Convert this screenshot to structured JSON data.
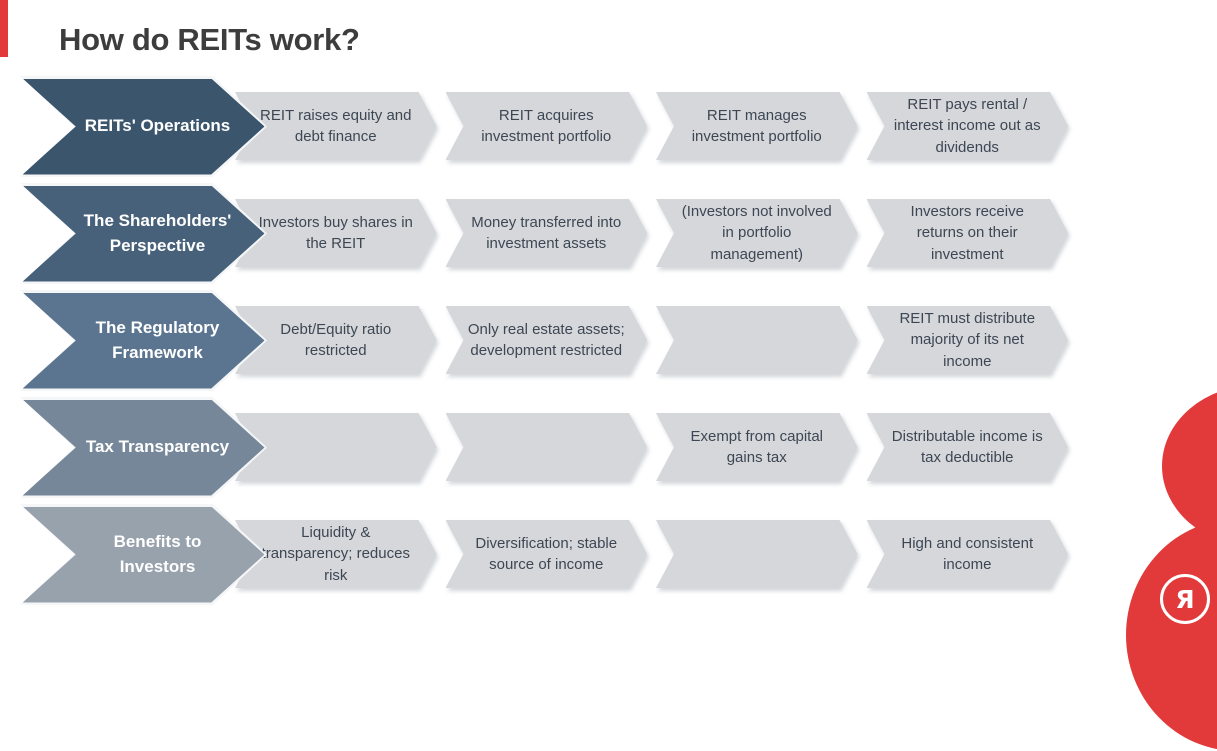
{
  "theme": {
    "accent_red": "#e23a3a",
    "step_bg": "#d6d7da",
    "step_text": "#3d4754",
    "title_color": "#3d3d3d"
  },
  "page": {
    "title": "How do REITs work?"
  },
  "brand": {
    "logo_letter": "Я"
  },
  "flow": {
    "rows": [
      {
        "label": "REITs' Operations",
        "color": "#3a556c",
        "steps": [
          "REIT raises equity and debt finance",
          "REIT acquires investment portfolio",
          "REIT manages investment portfolio",
          "REIT pays rental / interest income out as dividends"
        ]
      },
      {
        "label": "The Shareholders' Perspective",
        "color": "#47617a",
        "steps": [
          "Investors buy shares in the REIT",
          "Money transferred into investment assets",
          "(Investors not involved in portfolio management)",
          "Investors receive returns on their investment"
        ]
      },
      {
        "label": "The Regulatory Framework",
        "color": "#5b7590",
        "steps": [
          "Debt/Equity ratio restricted",
          "Only real estate assets; development restricted",
          "",
          "REIT must distribute majority of its net income"
        ]
      },
      {
        "label": "Tax Transparency",
        "color": "#76879a",
        "steps": [
          "",
          "",
          "Exempt from capital gains tax",
          "Distributable income is tax deductible"
        ]
      },
      {
        "label": "Benefits to Investors",
        "color": "#98a2ad",
        "steps": [
          "Liquidity & transparency; reduces risk",
          "Diversification; stable source of income",
          "",
          "High and consistent income"
        ]
      }
    ]
  }
}
